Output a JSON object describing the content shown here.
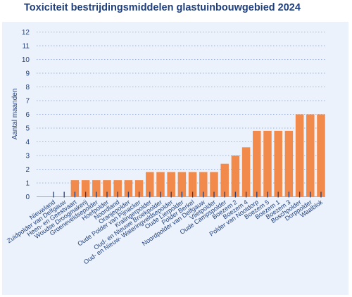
{
  "chart_data": {
    "type": "bar",
    "title": "Toxiciteit bestrijdingsmiddelen glastuinbouwgebied 2024",
    "ylabel": "Aantal maanden",
    "xlabel": "",
    "ylim": [
      0,
      12
    ],
    "yticks": [
      0,
      1,
      2,
      3,
      4,
      5,
      6,
      7,
      8,
      9,
      10,
      11,
      12
    ],
    "grid": "horizontal dotted",
    "bar_color": "#f28a4b",
    "axis_color": "#1f3f7e",
    "categories": [
      "Nieuwland",
      "Zuidpolder van Delfgauw",
      "Heen- en Geestvaart",
      "Woudse Droogmakerij",
      "Groeneveldsepolder",
      "Hoefpolder",
      "Noordland",
      "Oranjepolder",
      "Oude Polder van Pijnacker",
      "Kralingerpolder",
      "Oud- en Nieuwe Broekpolder",
      "Oud- en Nieuw- Wateringveldsepolder",
      "Oude Lierpolder",
      "Polder Berkel",
      "Noordpolder van Delfgauw",
      "Vlietpolder",
      "Oude Campspolder",
      "Boezem 2",
      "Boezem 4",
      "Polder van Nootdorp",
      "Boezem 5",
      "Boezem 1",
      "Boezem 3",
      "Boschpolder",
      "Dorppolder",
      "Waalblok"
    ],
    "values": [
      0,
      0,
      1.2,
      1.2,
      1.2,
      1.2,
      1.2,
      1.2,
      1.2,
      1.8,
      1.8,
      1.8,
      1.8,
      1.8,
      1.8,
      1.8,
      2.4,
      3.0,
      3.6,
      4.8,
      4.8,
      4.8,
      4.8,
      6.0,
      6.0,
      6.0
    ]
  }
}
